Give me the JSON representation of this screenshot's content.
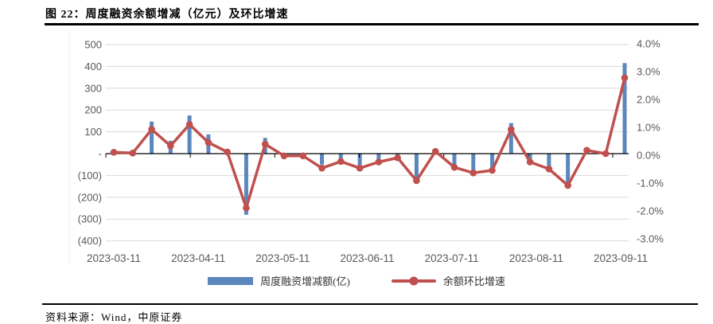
{
  "figure": {
    "title": "图 22：周度融资余额增减（亿元）及环比增速",
    "source": "资料来源：Wind，中原证券"
  },
  "legend": {
    "bar_label": "周度融资增减额(亿)",
    "line_label": "余额环比增速"
  },
  "colors": {
    "bar": "#5B87BE",
    "line": "#C0504D",
    "grid": "#D9D9D9",
    "axis": "#000000",
    "tick_text": "#595959"
  },
  "chart_data": {
    "type": "combo_bar_line",
    "title": "周度融资余额增减（亿元）及环比增速",
    "grid": true,
    "legend_position": "bottom",
    "x_tick_labels": [
      "2023-03-11",
      "2023-04-11",
      "2023-05-11",
      "2023-06-11",
      "2023-07-11",
      "2023-08-11",
      "2023-09-11"
    ],
    "left_axis": {
      "min": -400,
      "max": 500,
      "ticks": [
        {
          "label": "500",
          "value": 500
        },
        {
          "label": "400",
          "value": 400
        },
        {
          "label": "300",
          "value": 300
        },
        {
          "label": "200",
          "value": 200
        },
        {
          "label": "100",
          "value": 100
        },
        {
          "label": "-",
          "value": 0
        },
        {
          "label": "(100)",
          "value": -100
        },
        {
          "label": "(200)",
          "value": -200
        },
        {
          "label": "(300)",
          "value": -300
        },
        {
          "label": "(400)",
          "value": -400
        }
      ]
    },
    "right_axis": {
      "min": -3,
      "max": 4,
      "ticks": [
        {
          "label": "4.0%",
          "value": 4
        },
        {
          "label": "3.0%",
          "value": 3
        },
        {
          "label": "2.0%",
          "value": 2
        },
        {
          "label": "1.0%",
          "value": 1
        },
        {
          "label": "0.0%",
          "value": 0
        },
        {
          "label": "-1.0%",
          "value": -1
        },
        {
          "label": "-2.0%",
          "value": -2
        },
        {
          "label": "-3.0%",
          "value": -3
        }
      ]
    },
    "series": [
      {
        "name": "周度融资增减额(亿)",
        "type": "bar",
        "axis": "left",
        "values": [
          -8,
          -5,
          147,
          59,
          175,
          88,
          15,
          -280,
          72,
          -10,
          -12,
          -50,
          -28,
          -60,
          -35,
          -15,
          -115,
          15,
          -76,
          -80,
          -78,
          140,
          -35,
          -62,
          -140,
          25,
          5,
          415
        ]
      },
      {
        "name": "余额环比增速",
        "type": "line",
        "axis": "right",
        "values": [
          0.05,
          0.02,
          0.87,
          0.28,
          1.05,
          0.4,
          0.06,
          -1.95,
          0.34,
          -0.08,
          -0.08,
          -0.52,
          -0.28,
          -0.52,
          -0.3,
          -0.15,
          -0.97,
          0.08,
          -0.49,
          -0.69,
          -0.6,
          0.87,
          -0.3,
          -0.55,
          -1.14,
          0.12,
          0.0,
          2.72
        ]
      }
    ]
  }
}
